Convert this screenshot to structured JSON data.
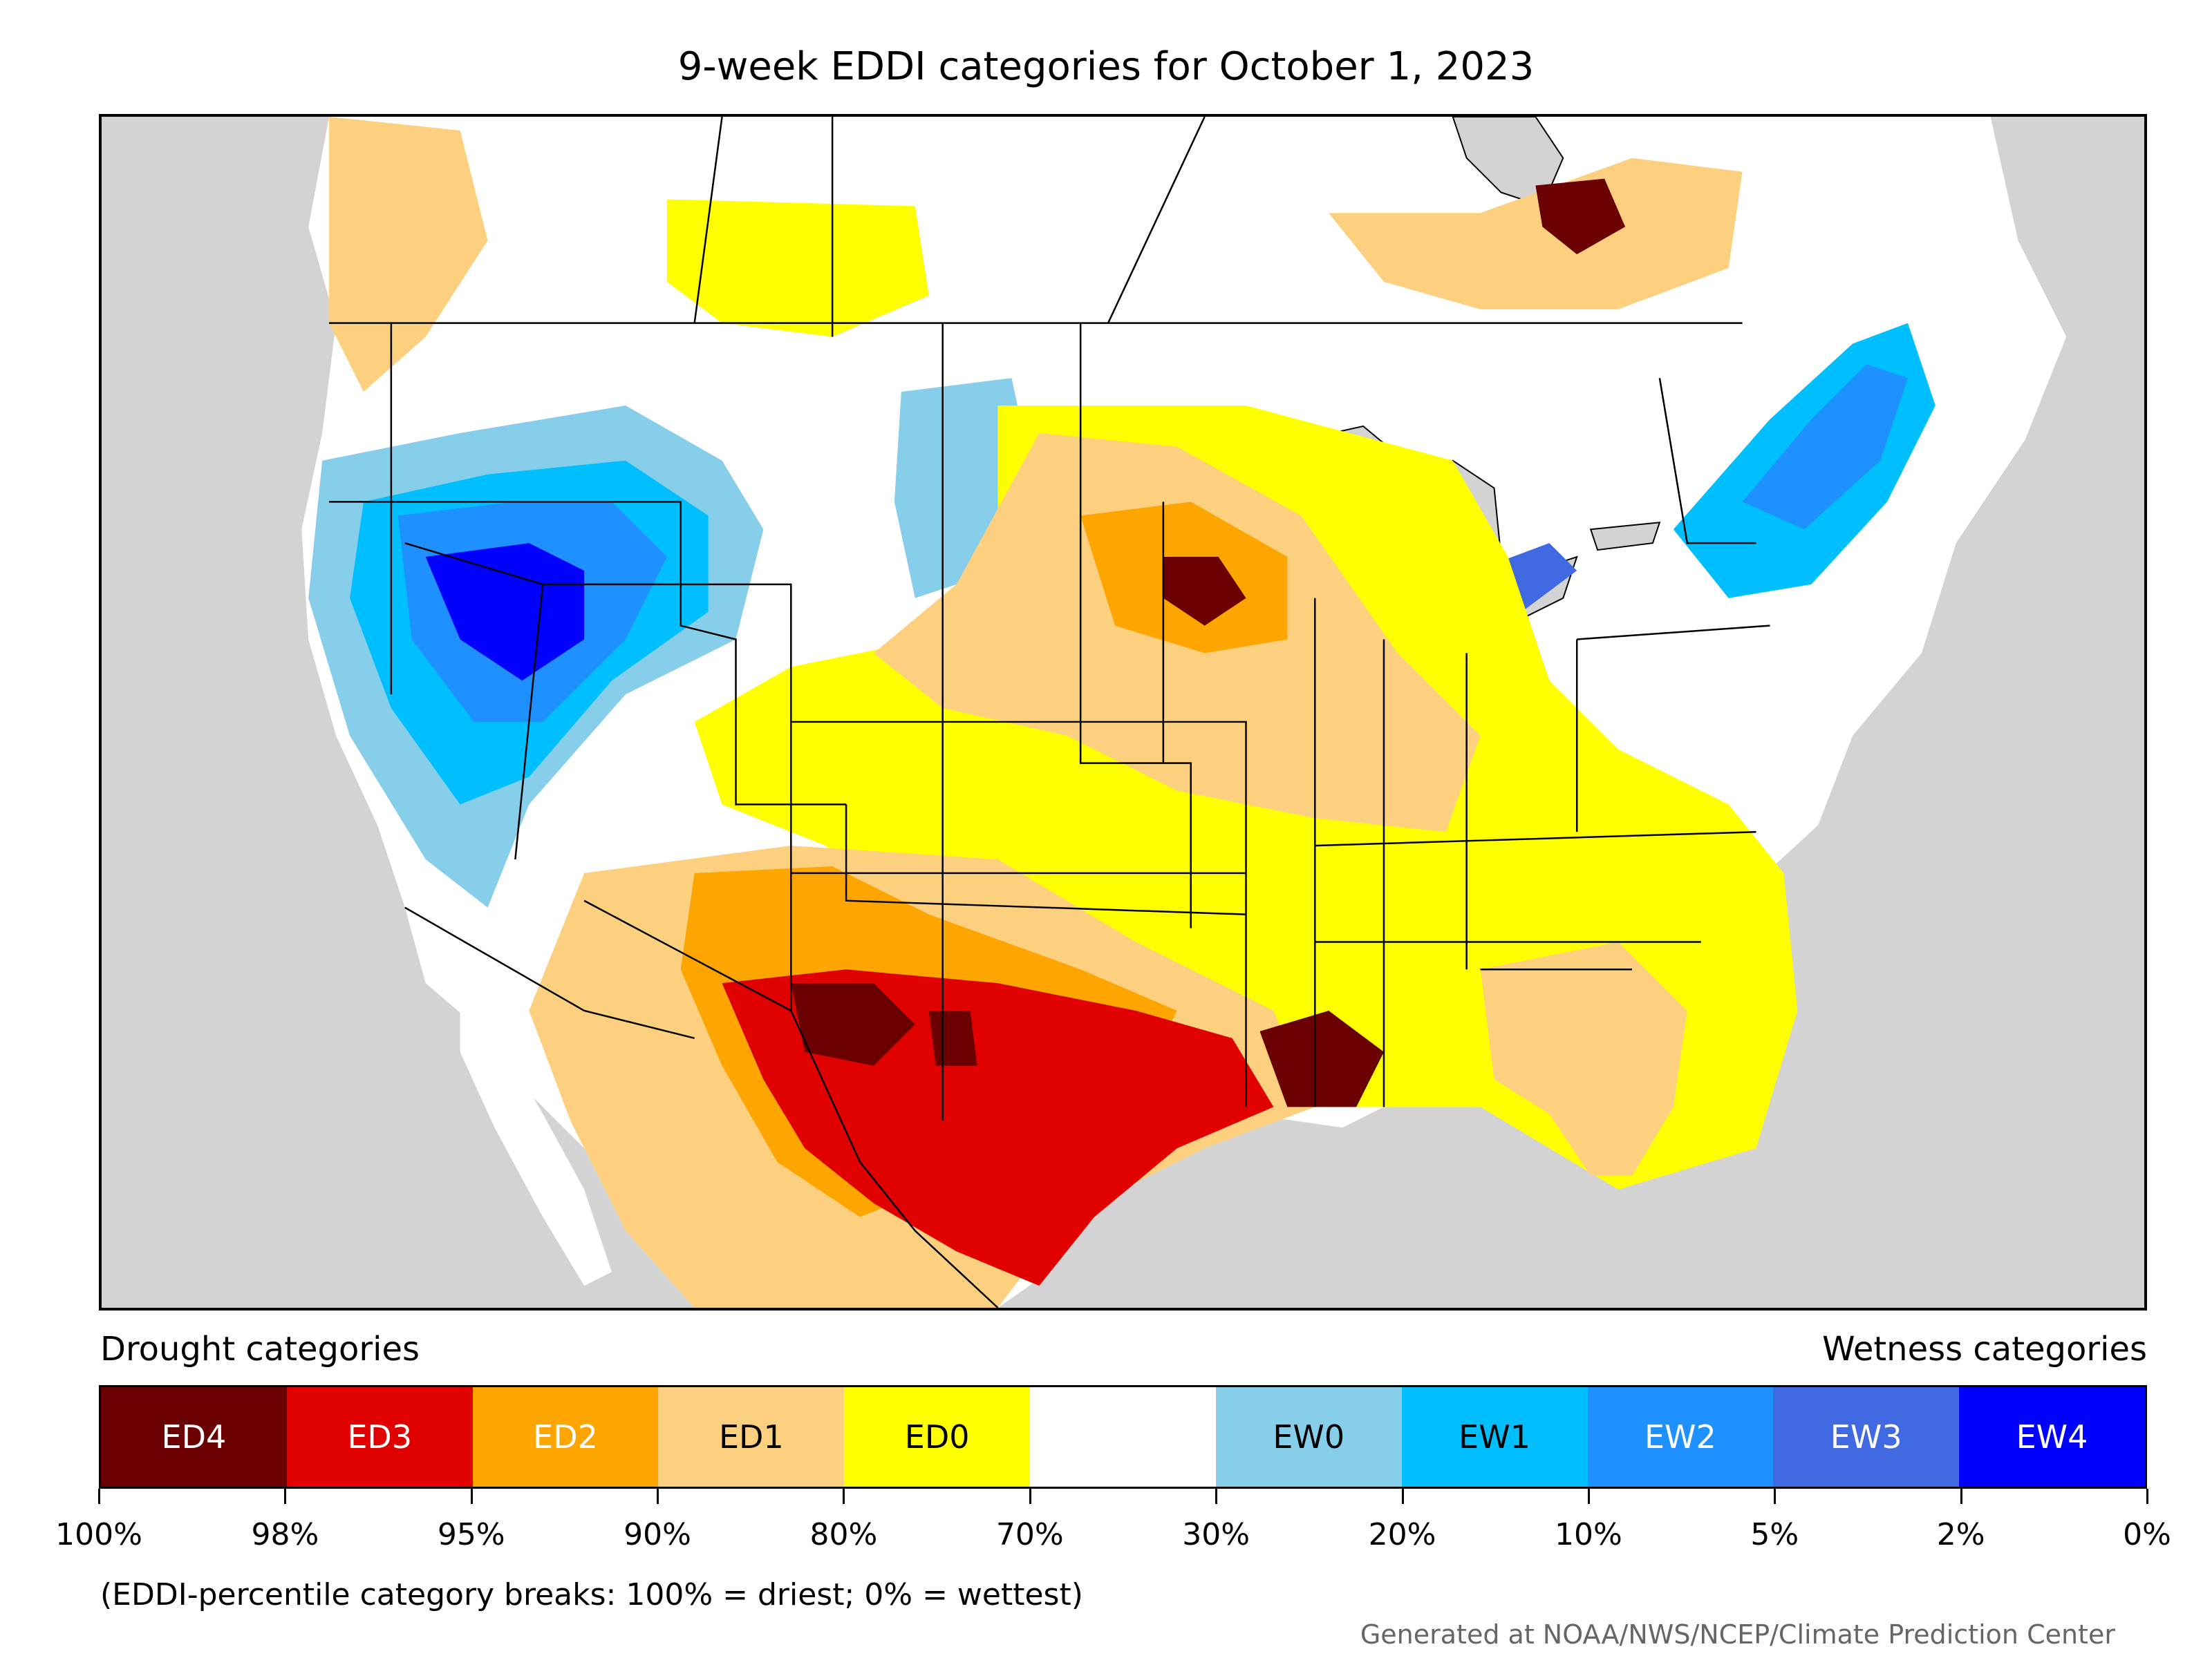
{
  "title": "9-week EDDI categories for October 1, 2023",
  "legend": {
    "drought_heading": "Drought categories",
    "wetness_heading": "Wetness categories",
    "categories": [
      {
        "label": "ED4",
        "color": "#6b0000",
        "text_color": "#ffffff"
      },
      {
        "label": "ED3",
        "color": "#e00000",
        "text_color": "#ffffff"
      },
      {
        "label": "ED2",
        "color": "#ffa500",
        "text_color": "#ffffff"
      },
      {
        "label": "ED1",
        "color": "#fdd07f",
        "text_color": "#000000"
      },
      {
        "label": "ED0",
        "color": "#ffff00",
        "text_color": "#000000"
      },
      {
        "label": "",
        "color": "#ffffff",
        "text_color": "#000000"
      },
      {
        "label": "EW0",
        "color": "#87ceeb",
        "text_color": "#000000"
      },
      {
        "label": "EW1",
        "color": "#00bfff",
        "text_color": "#000000"
      },
      {
        "label": "EW2",
        "color": "#1e90ff",
        "text_color": "#ffffff"
      },
      {
        "label": "EW3",
        "color": "#4169e1",
        "text_color": "#ffffff"
      },
      {
        "label": "EW4",
        "color": "#0000ff",
        "text_color": "#ffffff"
      }
    ],
    "tick_labels": [
      "100%",
      "98%",
      "95%",
      "90%",
      "80%",
      "70%",
      "30%",
      "20%",
      "10%",
      "5%",
      "2%",
      "0%"
    ]
  },
  "note": "(EDDI-percentile category breaks: 100% = driest; 0% = wettest)",
  "credit": "Generated at NOAA/NWS/NCEP/Climate Prediction Center",
  "map": {
    "background_color": "#d3d3d3",
    "land_color": "#ffffff",
    "border_color": "#000000"
  }
}
